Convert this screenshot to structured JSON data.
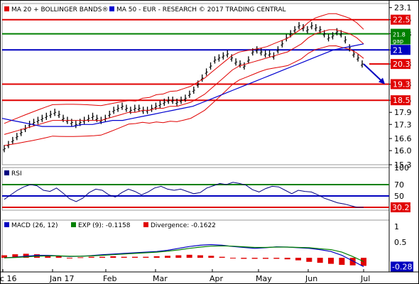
{
  "chart_data": [
    {
      "type": "line",
      "panel": "price",
      "legend": [
        {
          "text": "MA 20 + BOLLINGER BANDS®",
          "color": "#e00000"
        },
        {
          "text": "MA 50 - EUR - RESEARCH © 2017 TRADING CENTRAL",
          "color": "#0000d0"
        }
      ],
      "ylim": [
        15.3,
        23.3
      ],
      "yticks": [
        "23.1",
        "22.5",
        "21.8",
        "21",
        "20.3",
        "19.3",
        "18.5",
        "17.9",
        "17.3",
        "16.6",
        "16.0",
        "15.3"
      ],
      "xticks": [
        "c 16",
        "Jan 17",
        "Feb",
        "Mar",
        "Apr",
        "May",
        "Jun",
        "Jul"
      ],
      "levels": [
        {
          "label": "22.5",
          "value": 22.5,
          "color": "#e00000",
          "kind": "resistance"
        },
        {
          "label": "21.8",
          "value": 21.8,
          "color": "#008000",
          "kind": "gap",
          "sublabel": "gap"
        },
        {
          "label": "21",
          "value": 21.0,
          "color": "#0000c0",
          "kind": "pivot"
        },
        {
          "label": "20.3",
          "value": 20.3,
          "color": "#e00000",
          "kind": "last"
        },
        {
          "label": "19.3",
          "value": 19.3,
          "color": "#e00000",
          "kind": "support"
        },
        {
          "label": "18.5",
          "value": 18.5,
          "color": "#e00000",
          "kind": "support"
        }
      ],
      "series": [
        {
          "name": "Price",
          "color": "#000000",
          "values": [
            16.1,
            16.3,
            16.5,
            16.7,
            16.9,
            17.1,
            17.3,
            17.4,
            17.5,
            17.6,
            17.7,
            17.8,
            17.9,
            17.8,
            17.6,
            17.5,
            17.4,
            17.3,
            17.4,
            17.5,
            17.6,
            17.7,
            17.6,
            17.5,
            17.6,
            17.8,
            18.0,
            18.1,
            18.2,
            18.1,
            18.0,
            18.1,
            18.1,
            18.0,
            18.0,
            18.1,
            18.2,
            18.3,
            18.4,
            18.5,
            18.5,
            18.4,
            18.5,
            18.6,
            18.8,
            19.0,
            19.3,
            19.6,
            19.9,
            20.2,
            20.5,
            20.6,
            20.7,
            20.8,
            20.6,
            20.4,
            20.3,
            20.2,
            20.5,
            20.9,
            21.0,
            20.9,
            20.8,
            20.8,
            20.7,
            21.0,
            21.3,
            21.6,
            21.8,
            22.0,
            22.2,
            22.1,
            22.0,
            22.2,
            22.1,
            22.0,
            21.8,
            21.6,
            21.7,
            21.9,
            21.8,
            21.5,
            21.1,
            20.8,
            20.6,
            20.3
          ]
        },
        {
          "name": "MA 20",
          "color": "#e00000",
          "values": [
            16.8,
            16.9,
            17.0,
            17.1,
            17.2,
            17.3,
            17.4,
            17.5,
            17.5,
            17.5,
            17.5,
            17.5,
            17.5,
            17.5,
            17.5,
            17.6,
            17.7,
            17.8,
            17.9,
            17.9,
            18.0,
            18.0,
            18.1,
            18.1,
            18.2,
            18.2,
            18.3,
            18.4,
            18.6,
            18.8,
            19.1,
            19.4,
            19.7,
            20.0,
            20.2,
            20.3,
            20.4,
            20.5,
            20.6,
            20.7,
            20.8,
            20.9,
            21.1,
            21.3,
            21.6,
            21.8,
            21.9,
            22.0,
            22.0,
            21.9,
            21.8,
            21.6,
            21.3
          ]
        },
        {
          "name": "MA 50",
          "color": "#0000d0",
          "values": [
            17.6,
            17.5,
            17.4,
            17.3,
            17.2,
            17.2,
            17.2,
            17.2,
            17.3,
            17.3,
            17.4,
            17.5,
            17.5,
            17.6,
            17.7,
            17.8,
            17.9,
            18.0,
            18.1,
            18.2,
            18.4,
            18.6,
            18.8,
            19.0,
            19.2,
            19.4,
            19.6,
            19.8,
            20.0,
            20.2,
            20.4,
            20.6,
            20.8,
            21.0,
            21.1,
            21.2,
            21.3
          ]
        }
      ],
      "projection": {
        "from": 20.3,
        "to": 19.3,
        "color": "#0000c0"
      }
    },
    {
      "type": "line",
      "panel": "rsi",
      "legend": [
        {
          "text": "RSI",
          "color": "#000080"
        }
      ],
      "ylim": [
        25,
        100
      ],
      "yticks": [
        "100",
        "70",
        "50",
        "30"
      ],
      "levels": [
        {
          "label": "70",
          "value": 70,
          "color": "#008000"
        },
        {
          "label": "50",
          "value": 50,
          "color": "#0000c0"
        },
        {
          "label": "30",
          "value": 30,
          "color": "#e00000"
        }
      ],
      "last_badge": "30.21",
      "series": [
        {
          "name": "RSI",
          "color": "#000080",
          "values": [
            44,
            52,
            60,
            66,
            70,
            68,
            60,
            58,
            64,
            55,
            45,
            40,
            46,
            56,
            62,
            60,
            52,
            48,
            56,
            62,
            58,
            52,
            57,
            64,
            67,
            62,
            60,
            62,
            58,
            54,
            56,
            64,
            68,
            72,
            70,
            74,
            72,
            69,
            61,
            57,
            63,
            67,
            66,
            60,
            54,
            60,
            58,
            57,
            52,
            46,
            42,
            38,
            36,
            33,
            30,
            30
          ]
        }
      ]
    },
    {
      "type": "line",
      "panel": "macd",
      "legend": [
        {
          "text": "MACD (26, 12)",
          "color": "#0000c0"
        },
        {
          "text": "EXP (9): -0.1158",
          "color": "#008000"
        },
        {
          "text": "Divergence: -0.1622",
          "color": "#e00000"
        }
      ],
      "ylim": [
        -0.45,
        1.2
      ],
      "yticks": [
        "1",
        "0.5",
        "-0.28"
      ],
      "last_badge": "-0.28",
      "series": [
        {
          "name": "MACD (26, 12)",
          "color": "#0000c0",
          "values": [
            0.0,
            0.02,
            0.05,
            0.08,
            0.08,
            0.06,
            0.04,
            0.05,
            0.07,
            0.1,
            0.12,
            0.14,
            0.16,
            0.18,
            0.2,
            0.24,
            0.3,
            0.36,
            0.4,
            0.42,
            0.4,
            0.36,
            0.33,
            0.3,
            0.32,
            0.35,
            0.34,
            0.32,
            0.3,
            0.26,
            0.2,
            0.08,
            -0.1,
            -0.28
          ]
        },
        {
          "name": "EXP (9)",
          "color": "#008000",
          "values": [
            0.0,
            0.01,
            0.03,
            0.05,
            0.06,
            0.06,
            0.05,
            0.05,
            0.06,
            0.08,
            0.1,
            0.12,
            0.14,
            0.16,
            0.18,
            0.21,
            0.25,
            0.3,
            0.34,
            0.37,
            0.38,
            0.37,
            0.35,
            0.33,
            0.33,
            0.34,
            0.34,
            0.33,
            0.32,
            0.29,
            0.26,
            0.18,
            0.04,
            -0.12
          ]
        },
        {
          "name": "Divergence",
          "color": "#e00000",
          "values": [
            0.05,
            0.07,
            0.08,
            0.07,
            0.05,
            0.03,
            0.0,
            0.01,
            0.02,
            0.02,
            0.03,
            0.02,
            0.02,
            0.02,
            0.03,
            0.04,
            0.05,
            0.06,
            0.05,
            0.04,
            0.02,
            0.0,
            -0.02,
            -0.02,
            -0.02,
            -0.02,
            -0.03,
            -0.05,
            -0.08,
            -0.1,
            -0.12,
            -0.14,
            -0.15,
            -0.16
          ]
        }
      ]
    }
  ]
}
